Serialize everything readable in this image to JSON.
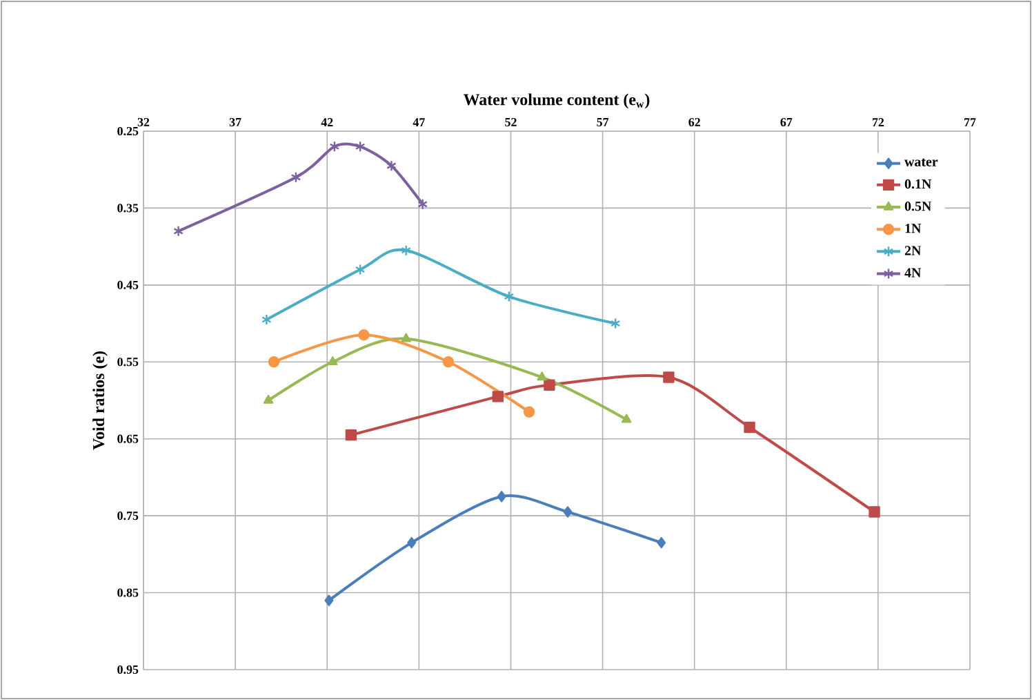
{
  "chart_data": {
    "type": "line",
    "xlabel": "Water volume content (e$_{w}$)",
    "ylabel": "Void ratios  (e)",
    "xlim": [
      32,
      77
    ],
    "xticks": [
      32,
      37,
      42,
      47,
      52,
      57,
      62,
      67,
      72,
      77
    ],
    "ylim": [
      0.95,
      0.25
    ],
    "yticks": [
      0.25,
      0.35,
      0.45,
      0.55,
      0.65,
      0.75,
      0.85,
      0.95
    ],
    "grid": true,
    "legend": "top right",
    "series": [
      {
        "name": "water",
        "color": "#4a7ebb",
        "marker": "diamond",
        "x": [
          42.1,
          46.6,
          51.5,
          55.1,
          60.2
        ],
        "values": [
          0.86,
          0.785,
          0.725,
          0.745,
          0.785
        ]
      },
      {
        "name": "0.1N",
        "color": "#be4b48",
        "marker": "square",
        "x": [
          43.3,
          51.3,
          54.1,
          60.6,
          65.0,
          71.8
        ],
        "values": [
          0.645,
          0.595,
          0.58,
          0.57,
          0.635,
          0.745
        ]
      },
      {
        "name": "0.5N",
        "color": "#98b954",
        "marker": "triangle",
        "x": [
          38.8,
          42.3,
          46.3,
          53.7,
          58.3
        ],
        "values": [
          0.6,
          0.55,
          0.52,
          0.57,
          0.625
        ]
      },
      {
        "name": "1N",
        "color": "#f79646",
        "marker": "circle",
        "x": [
          39.1,
          44.0,
          48.6,
          53.0
        ],
        "values": [
          0.55,
          0.515,
          0.55,
          0.615
        ]
      },
      {
        "name": "2N",
        "color": "#4bacc6",
        "marker": "cross",
        "x": [
          38.7,
          43.8,
          46.3,
          51.9,
          57.7
        ],
        "values": [
          0.495,
          0.43,
          0.405,
          0.465,
          0.5
        ]
      },
      {
        "name": "4N",
        "color": "#7d60a0",
        "marker": "cross",
        "x": [
          33.9,
          40.3,
          42.4,
          43.8,
          45.5,
          47.2
        ],
        "values": [
          0.38,
          0.31,
          0.27,
          0.27,
          0.295,
          0.345
        ]
      }
    ]
  }
}
